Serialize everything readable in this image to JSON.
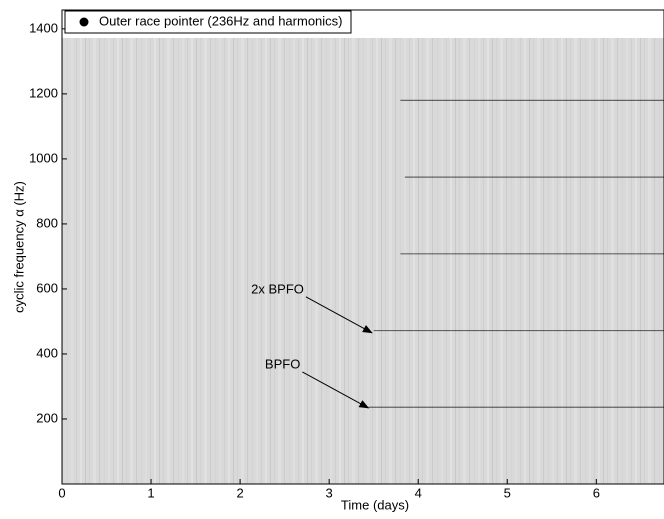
{
  "chart_data": {
    "type": "spectrogram",
    "xlabel": "Time (days)",
    "ylabel": "cyclic frequency α (Hz)",
    "xlim": [
      0,
      6.76
    ],
    "ylim": [
      0,
      1458
    ],
    "xticks": [
      0,
      1,
      2,
      3,
      4,
      5,
      6
    ],
    "yticks": [
      200,
      400,
      600,
      800,
      1000,
      1200,
      1400
    ],
    "image_ylim": [
      0,
      1372
    ],
    "series": [
      {
        "name": "Outer race pointer (236Hz and harmonics)",
        "color": "#000000",
        "values": [
          236,
          472,
          708,
          944,
          1180
        ],
        "x": [
          3.44,
          3.5,
          3.8,
          3.85,
          3.8
        ]
      }
    ],
    "legend": "upper left",
    "annotations": [
      {
        "text": "2x BPFO",
        "x": 3.48,
        "y": 465
      },
      {
        "text": "BPFO",
        "x": 3.44,
        "y": 234
      }
    ]
  }
}
